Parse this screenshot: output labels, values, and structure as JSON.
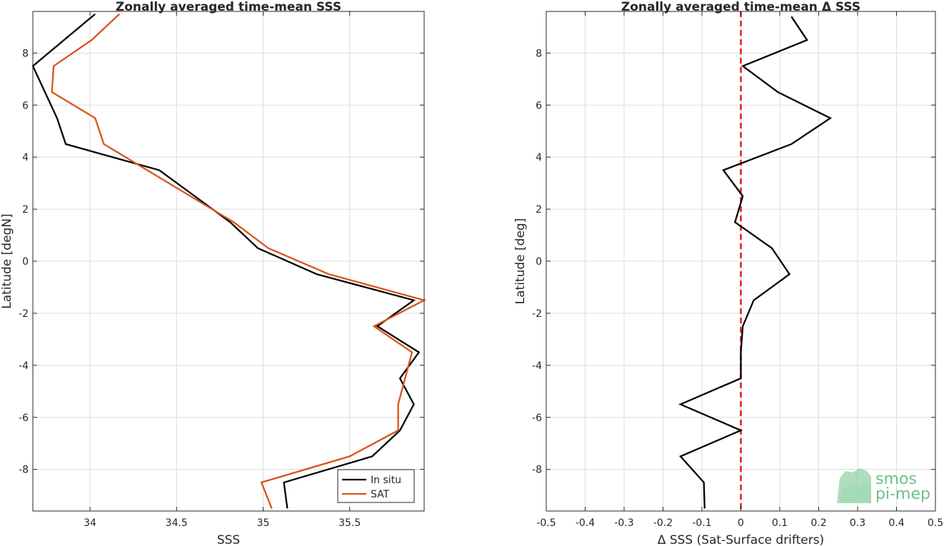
{
  "chart_data": [
    {
      "type": "line",
      "title": "Zonally averaged time-mean SSS",
      "xlabel": "SSS",
      "ylabel": "Latitude [degN]",
      "xlim": [
        33.67,
        35.93
      ],
      "ylim": [
        -9.6,
        9.6
      ],
      "xticks": [
        34,
        34.5,
        35,
        35.5
      ],
      "xtick_labels": [
        "34",
        "34.5",
        "35",
        "35.5"
      ],
      "yticks": [
        -8,
        -6,
        -4,
        -2,
        0,
        2,
        4,
        6,
        8
      ],
      "ytick_labels": [
        "-8",
        "-6",
        "-4",
        "-2",
        "0",
        "2",
        "4",
        "6",
        "8"
      ],
      "grid": true,
      "legend": "bottom-right",
      "series": [
        {
          "name": "In situ",
          "color": "#000000",
          "x": [
            34.03,
            33.67,
            33.81,
            33.86,
            34.4,
            34.81,
            34.97,
            35.31,
            35.87,
            35.66,
            35.9,
            35.79,
            35.87,
            35.79,
            35.63,
            35.12,
            35.14
          ],
          "y": [
            9.5,
            7.5,
            5.5,
            4.5,
            3.5,
            1.5,
            0.5,
            -0.5,
            -1.5,
            -2.5,
            -3.5,
            -4.5,
            -5.5,
            -6.5,
            -7.5,
            -8.5,
            -9.5
          ]
        },
        {
          "name": "SAT",
          "color": "#d95319",
          "x": [
            34.17,
            34.01,
            33.79,
            33.78,
            34.03,
            34.08,
            34.83,
            35.03,
            35.38,
            35.93,
            35.64,
            35.86,
            35.78,
            35.78,
            35.5,
            34.99,
            35.05
          ],
          "y": [
            9.5,
            8.5,
            7.5,
            6.5,
            5.5,
            4.5,
            1.5,
            0.5,
            -0.5,
            -1.5,
            -2.5,
            -3.5,
            -5.5,
            -6.5,
            -7.5,
            -8.5,
            -9.5
          ]
        }
      ]
    },
    {
      "type": "line",
      "title": "Zonally averaged time-mean Δ SSS",
      "xlabel": "Δ SSS (Sat-Surface drifters)",
      "ylabel": "Latitude [deg]",
      "xlim": [
        -0.5,
        0.5
      ],
      "ylim": [
        -9.6,
        9.6
      ],
      "xticks": [
        -0.5,
        -0.4,
        -0.3,
        -0.2,
        -0.1,
        0,
        0.1,
        0.2,
        0.3,
        0.4,
        0.5
      ],
      "xtick_labels": [
        "-0.5",
        "-0.4",
        "-0.3",
        "-0.2",
        "-0.1",
        "0",
        "0.1",
        "0.2",
        "0.3",
        "0.4",
        "0.5"
      ],
      "yticks": [
        -8,
        -6,
        -4,
        -2,
        0,
        2,
        4,
        6,
        8
      ],
      "ytick_labels": [
        "-8",
        "-6",
        "-4",
        "-2",
        "0",
        "2",
        "4",
        "6",
        "8"
      ],
      "grid": true,
      "reference_line": {
        "x": 0,
        "color": "#e41a1c",
        "style": "dashed"
      },
      "series": [
        {
          "color": "#000000",
          "x": [
            0.13,
            0.17,
            0.005,
            0.095,
            0.23,
            0.13,
            -0.045,
            0.005,
            -0.015,
            0.08,
            0.125,
            0.033,
            0.005,
            0.0,
            0.0,
            -0.155,
            0.0,
            -0.155,
            -0.095,
            -0.093
          ],
          "y": [
            9.4,
            8.5,
            7.5,
            6.5,
            5.5,
            4.5,
            3.5,
            2.5,
            1.5,
            0.5,
            -0.5,
            -1.5,
            -2.5,
            -3.5,
            -4.5,
            -5.5,
            -6.5,
            -7.5,
            -8.5,
            -9.5
          ]
        }
      ]
    }
  ],
  "watermark": {
    "line1": "smos",
    "line2": "pi-mep",
    "color": "#6fbf8c"
  }
}
